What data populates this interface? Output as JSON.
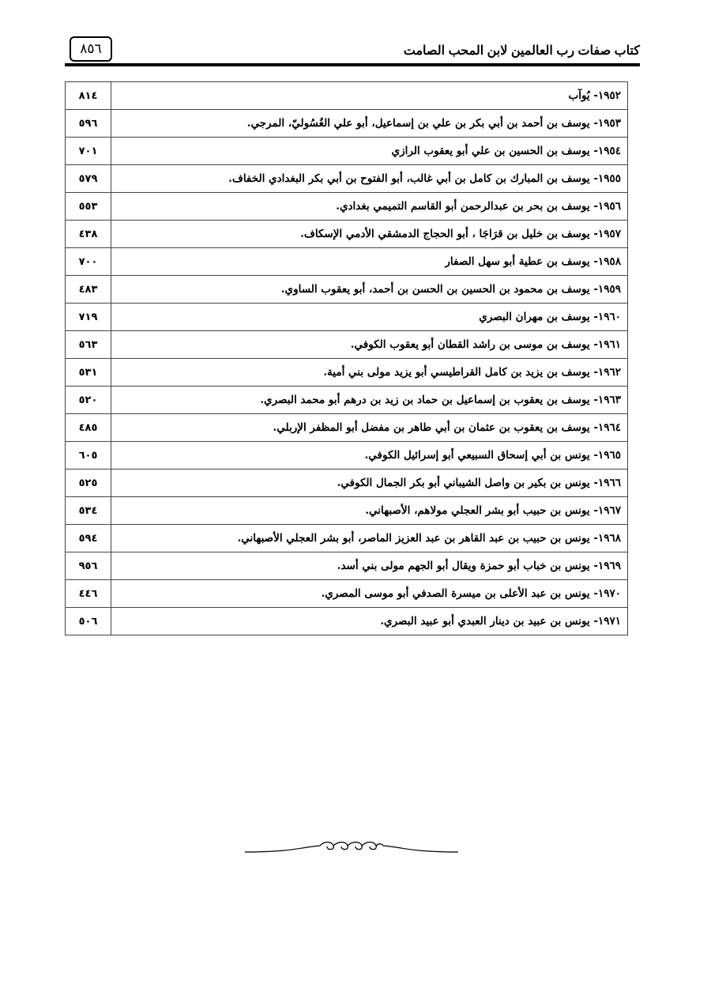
{
  "header": {
    "book_title": "كتاب صفات رب العالمين لابن المحب الصامت",
    "page_number": "٨٥٦"
  },
  "entries": [
    {
      "text": "١٩٥٢- يُوآب",
      "page": "٨١٤"
    },
    {
      "text": "١٩٥٣- يوسف بن أحمد بن أبي بكر بن علي بن إسماعيل، أبو علي الغُسُوليّ، المرجي.",
      "page": "٥٩٦"
    },
    {
      "text": "١٩٥٤- يوسف بن الحسين بن علي أبو يعقوب  الرازي",
      "page": "٧٠١"
    },
    {
      "text": "١٩٥٥- يوسف بن المبارك بن كامل بن أبي غالب، أبو الفتوح بن أبي بكر البغدادي الخفاف.",
      "page": "٥٧٩"
    },
    {
      "text": "١٩٥٦- يوسف بن بحر بن عبدالرحمن أبو القاسم التميمي بغدادي.",
      "page": "٥٥٣"
    },
    {
      "text": "١٩٥٧- يوسف بن خليل بن قرَاجَا ، أبو الحجاج الدمشقي الأدمي الإسكاف.",
      "page": "٤٣٨"
    },
    {
      "text": "١٩٥٨- يوسف بن عطية أبو سهل الصفار",
      "page": "٧٠٠"
    },
    {
      "text": "١٩٥٩- يوسف بن محمود بن الحسين بن الحسن بن أحمد، أبو يعقوب الساوي.",
      "page": "٤٨٣"
    },
    {
      "text": "١٩٦٠- يوسف بن مهران البصري",
      "page": "٧١٩"
    },
    {
      "text": "١٩٦١- يوسف بن موسى بن راشد القطان أبو يعقوب الكوفي.",
      "page": "٥٦٣"
    },
    {
      "text": "١٩٦٢- يوسف بن يزيد بن كامل القراطيسي أبو يزيد مولى بني أمية.",
      "page": "٥٣١"
    },
    {
      "text": "١٩٦٣- يوسف بن يعقوب بن إسماعيل بن حماد بن زيد بن درهم أبو محمد البصري.",
      "page": "٥٢٠"
    },
    {
      "text": "١٩٦٤- يوسف بن يعقوب بن عثمان بن أبي طاهر بن مفضل أبو المظفر الإربلي.",
      "page": "٤٨٥"
    },
    {
      "text": "١٩٦٥- يونس بن أبي إسحاق السبيعي أبو إسرائيل الكوفي.",
      "page": "٦٠٥"
    },
    {
      "text": "١٩٦٦- يونس بن بكير بن واصل الشيباني أبو بكر الجمال الكوفي.",
      "page": "٥٢٥"
    },
    {
      "text": "١٩٦٧- يونس بن حبيب أبو بشر العجلي مولاهم، الأصبهاني.",
      "page": "٥٣٤"
    },
    {
      "text": "١٩٦٨- يونس بن حبيب بن عبد القاهر بن عبد العزيز الماصر، أبو بشر العجلي الأصبهاني.",
      "page": "٥٩٤"
    },
    {
      "text": "١٩٦٩- يونس بن خباب أبو حمزة ويقال أبو الجهم مولى بني أسد.",
      "page": "٩٥٦"
    },
    {
      "text": "١٩٧٠- يونس بن عبد الأعلى بن ميسرة الصدفي أبو موسى المصري.",
      "page": "٤٤٦"
    },
    {
      "text": "١٩٧١- يونس بن عبيد بن دينار العبدي أبو عبيد البصري.",
      "page": "٥٠٦"
    }
  ],
  "ornament_icon": "decorative-flourish"
}
